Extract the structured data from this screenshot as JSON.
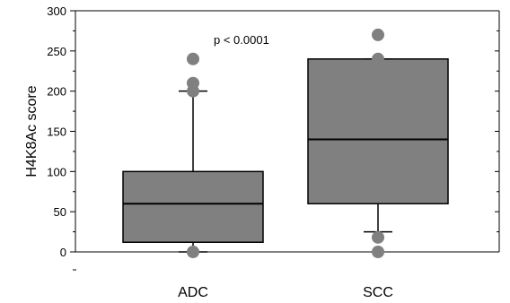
{
  "chart_data": {
    "type": "box",
    "title": "",
    "xlabel": "",
    "ylabel": "H4K8Ac score",
    "ylim": [
      0,
      300
    ],
    "yticks": [
      0,
      50,
      100,
      150,
      200,
      250,
      300
    ],
    "ytick_labels": [
      "0",
      "50",
      "100",
      "150",
      "200",
      "250",
      "300"
    ],
    "grid": false,
    "annotation": "p < 0.0001",
    "box_color": "#808080",
    "point_color": "#808080",
    "categories": [
      "ADC",
      "SCC"
    ],
    "boxes": [
      {
        "category": "ADC",
        "whisker_low": 0,
        "q1": 12,
        "median": 60,
        "q3": 100,
        "whisker_high": 200,
        "outliers": [
          0,
          200,
          210,
          240
        ]
      },
      {
        "category": "SCC",
        "whisker_low": 25,
        "q1": 60,
        "median": 140,
        "q3": 240,
        "whisker_high": 240,
        "outliers": [
          0,
          18,
          240,
          270
        ]
      }
    ]
  }
}
